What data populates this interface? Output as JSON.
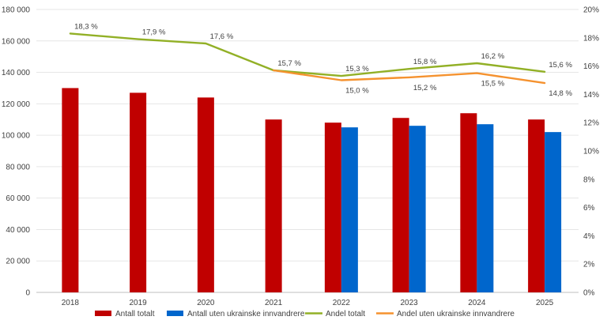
{
  "chart_data": {
    "type": "bar",
    "title": "",
    "xlabel": "",
    "ylabel": "",
    "categories": [
      "2018",
      "2019",
      "2020",
      "2021",
      "2022",
      "2023",
      "2024",
      "2025"
    ],
    "ylim": [
      0,
      180000
    ],
    "y2lim": [
      0,
      0.2
    ],
    "y_ticks": [
      "0",
      "20 000",
      "40 000",
      "60 000",
      "80 000",
      "100 000",
      "120 000",
      "140 000",
      "160 000",
      "180 000"
    ],
    "y2_ticks": [
      "0%",
      "2%",
      "4%",
      "6%",
      "8%",
      "10%",
      "12%",
      "14%",
      "16%",
      "18%",
      "20%"
    ],
    "grid": true,
    "legend_position": "bottom",
    "series": [
      {
        "name": "Antall totalt",
        "kind": "bar",
        "axis": "left",
        "color": "#C00000",
        "values": [
          130000,
          127000,
          124000,
          110000,
          108000,
          111000,
          114000,
          110000
        ]
      },
      {
        "name": "Antall uten  ukrainske innvandrere",
        "kind": "bar",
        "axis": "left",
        "color": "#0066CC",
        "values": [
          null,
          null,
          null,
          null,
          105000,
          106000,
          107000,
          102000
        ]
      },
      {
        "name": "Andel totalt",
        "kind": "line",
        "axis": "right",
        "color": "#92B026",
        "values": [
          0.183,
          0.179,
          0.176,
          0.157,
          0.153,
          0.158,
          0.162,
          0.156
        ],
        "labels": [
          "18,3 %",
          "17,9 %",
          "17,6 %",
          "15,7 %",
          "15,3 %",
          "15,8 %",
          "16,2 %",
          "15,6 %"
        ]
      },
      {
        "name": "Andel uten  ukrainske innvandrere",
        "kind": "line",
        "axis": "right",
        "color": "#F5922F",
        "values": [
          null,
          null,
          null,
          0.157,
          0.15,
          0.152,
          0.155,
          0.148
        ],
        "labels": [
          "",
          "",
          "",
          "",
          "15,0 %",
          "15,2 %",
          "15,5 %",
          "14,8 %"
        ]
      }
    ]
  }
}
